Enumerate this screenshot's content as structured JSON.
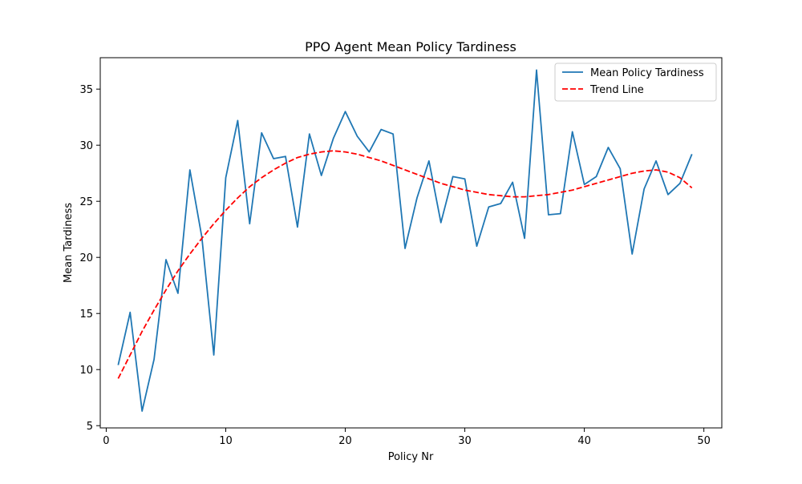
{
  "chart_data": {
    "type": "line",
    "title": "PPO Agent Mean Policy Tardiness",
    "xlabel": "Policy Nr",
    "ylabel": "Mean Tardiness",
    "xlim": [
      -0.5,
      51.5
    ],
    "ylim": [
      4.8,
      37.8
    ],
    "x_ticks": [
      0,
      10,
      20,
      30,
      40,
      50
    ],
    "y_ticks": [
      5,
      10,
      15,
      20,
      25,
      30,
      35
    ],
    "grid": false,
    "legend_position": "upper right",
    "series": [
      {
        "name": "Mean Policy Tardiness",
        "color": "#1f77b4",
        "style": "solid",
        "x": [
          1,
          2,
          3,
          4,
          5,
          6,
          7,
          8,
          9,
          10,
          11,
          12,
          13,
          14,
          15,
          16,
          17,
          18,
          19,
          20,
          21,
          22,
          23,
          24,
          25,
          26,
          27,
          28,
          29,
          30,
          31,
          32,
          33,
          34,
          35,
          36,
          37,
          38,
          39,
          40,
          41,
          42,
          43,
          44,
          45,
          46,
          47,
          48,
          49
        ],
        "y": [
          10.4,
          15.1,
          6.3,
          10.9,
          19.8,
          16.8,
          27.8,
          21.8,
          11.3,
          27.1,
          32.2,
          23.0,
          31.1,
          28.8,
          29.0,
          22.7,
          31.0,
          27.3,
          30.6,
          33.0,
          30.8,
          29.4,
          31.4,
          31.0,
          20.8,
          25.3,
          28.6,
          23.1,
          27.2,
          27.0,
          21.0,
          24.5,
          24.8,
          26.7,
          21.7,
          36.7,
          23.8,
          23.9,
          31.2,
          26.5,
          27.2,
          29.8,
          27.9,
          20.3,
          26.1,
          28.6,
          25.6,
          26.6,
          29.2
        ]
      },
      {
        "name": "Trend Line",
        "color": "#ff0000",
        "style": "dashed",
        "x": [
          1,
          2,
          3,
          4,
          5,
          6,
          7,
          8,
          9,
          10,
          11,
          12,
          13,
          14,
          15,
          16,
          17,
          18,
          19,
          20,
          21,
          22,
          23,
          24,
          25,
          26,
          27,
          28,
          29,
          30,
          31,
          32,
          33,
          34,
          35,
          36,
          37,
          38,
          39,
          40,
          41,
          42,
          43,
          44,
          45,
          46,
          47,
          48,
          49
        ],
        "y": [
          9.2,
          11.3,
          13.4,
          15.3,
          17.1,
          18.8,
          20.3,
          21.7,
          23.0,
          24.2,
          25.3,
          26.3,
          27.1,
          27.8,
          28.4,
          28.9,
          29.2,
          29.4,
          29.5,
          29.4,
          29.2,
          28.9,
          28.6,
          28.2,
          27.8,
          27.4,
          27.0,
          26.6,
          26.3,
          26.0,
          25.8,
          25.6,
          25.5,
          25.4,
          25.4,
          25.5,
          25.6,
          25.8,
          26.0,
          26.3,
          26.6,
          26.9,
          27.2,
          27.5,
          27.7,
          27.8,
          27.6,
          27.1,
          26.2
        ]
      }
    ]
  }
}
